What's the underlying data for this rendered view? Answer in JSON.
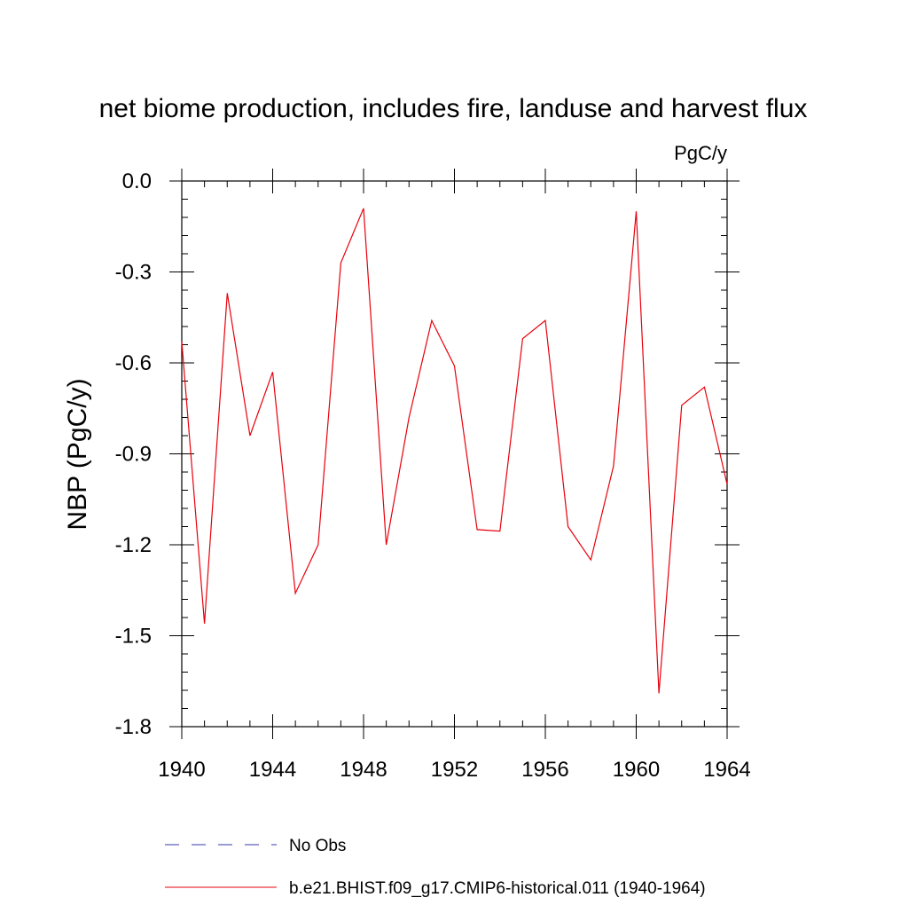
{
  "chart_data": {
    "type": "line",
    "title": "net biome production, includes fire, landuse and harvest flux",
    "units_label": "PgC/y",
    "ylabel": "NBP  (PgC/y)",
    "xlabel": "",
    "xlim": [
      1940,
      1964
    ],
    "ylim": [
      -1.8,
      0.0
    ],
    "x_ticks": [
      1940,
      1944,
      1948,
      1952,
      1956,
      1960,
      1964
    ],
    "x_tick_labels": [
      "1940",
      "1944",
      "1948",
      "1952",
      "1956",
      "1960",
      "1964"
    ],
    "y_ticks": [
      0.0,
      -0.3,
      -0.6,
      -0.9,
      -1.2,
      -1.5,
      -1.8
    ],
    "y_tick_labels": [
      "0.0",
      "-0.3",
      "-0.6",
      "-0.9",
      "-1.2",
      "-1.5",
      "-1.8"
    ],
    "grid": false,
    "legend_position": "bottom",
    "series": [
      {
        "name": "b.e21.BHIST.f09_g17.CMIP6-historical.011 (1940-1964)",
        "color": "#e8000b",
        "style": "solid",
        "x": [
          1940,
          1941,
          1942,
          1943,
          1944,
          1945,
          1946,
          1947,
          1948,
          1949,
          1950,
          1951,
          1952,
          1953,
          1954,
          1955,
          1956,
          1957,
          1958,
          1959,
          1960,
          1961,
          1962,
          1963,
          1964
        ],
        "y": [
          -0.53,
          -1.46,
          -0.37,
          -0.84,
          -0.63,
          -1.36,
          -1.2,
          -0.27,
          -0.09,
          -1.2,
          -0.78,
          -0.46,
          -0.61,
          -1.15,
          -1.155,
          -0.52,
          -0.46,
          -1.14,
          -1.25,
          -0.94,
          -0.1,
          -1.69,
          -0.74,
          -0.68,
          -1.0
        ]
      }
    ],
    "legend": [
      {
        "label": "No Obs",
        "color": "#3a3aa8",
        "style": "dashed"
      },
      {
        "label": "b.e21.BHIST.f09_g17.CMIP6-historical.011 (1940-1964)",
        "color": "#e8000b",
        "style": "solid"
      }
    ]
  }
}
